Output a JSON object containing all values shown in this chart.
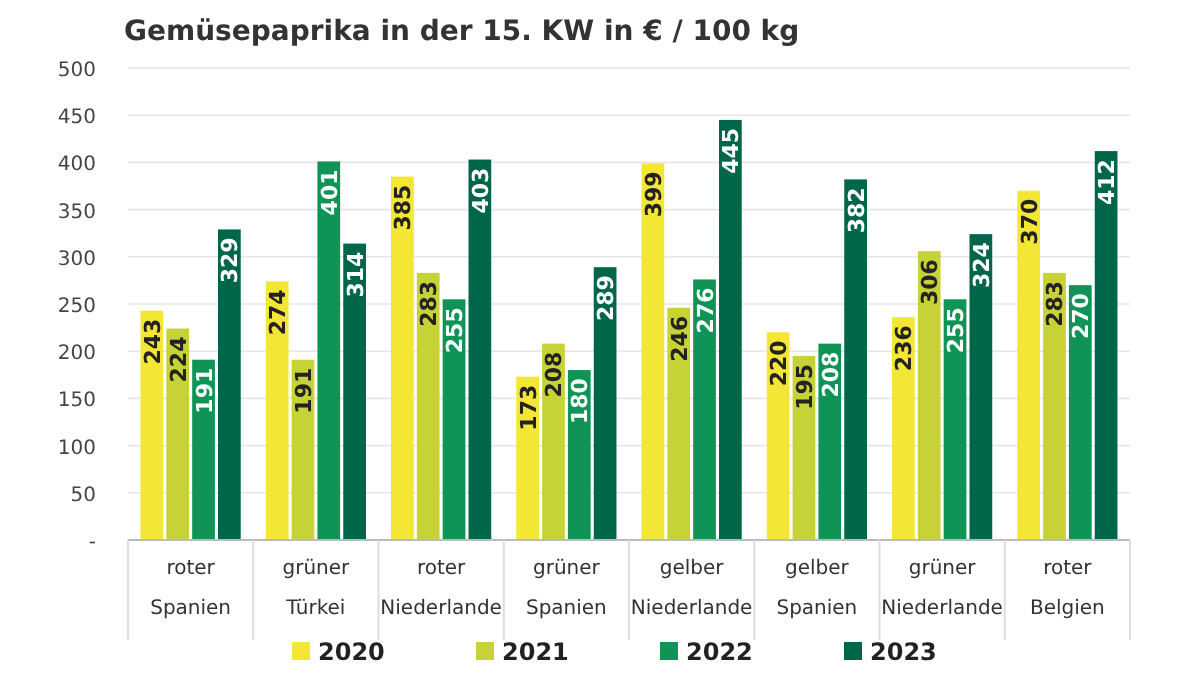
{
  "chart_data": {
    "type": "bar",
    "title": "Gemüsepaprika in der 15. KW in € / 100 kg",
    "categories": [
      "roter\nSpanien",
      "grüner\nTürkei",
      "roter\nNiederlande",
      "grüner\nSpanien",
      "gelber\nNiederlande",
      "gelber\nSpanien",
      "grüner\nNiederlande",
      "roter\nBelgien"
    ],
    "series": [
      {
        "name": "2020",
        "color": "#f4e634",
        "values": [
          243,
          274,
          385,
          173,
          399,
          220,
          236,
          370
        ]
      },
      {
        "name": "2021",
        "color": "#c6d236",
        "values": [
          224,
          191,
          283,
          208,
          246,
          195,
          306,
          283
        ]
      },
      {
        "name": "2022",
        "color": "#0f9455",
        "values": [
          191,
          401,
          255,
          180,
          276,
          208,
          255,
          270
        ]
      },
      {
        "name": "2023",
        "color": "#00664a",
        "values": [
          329,
          314,
          403,
          289,
          445,
          382,
          324,
          412
        ]
      }
    ],
    "ylim": [
      0,
      500
    ],
    "yticks": [
      {
        "value": 0,
        "label": "-"
      },
      50,
      100,
      150,
      200,
      250,
      300,
      350,
      400,
      450,
      500
    ],
    "grid": "y",
    "legend": "bottom",
    "data_labels": true
  }
}
